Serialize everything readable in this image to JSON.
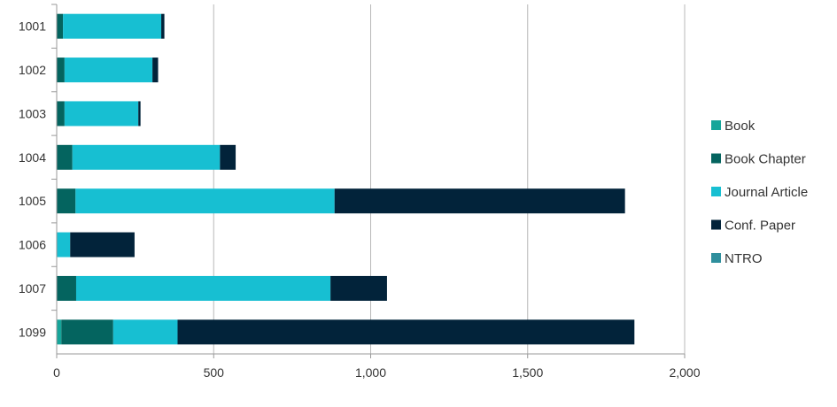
{
  "chart_data": {
    "type": "bar",
    "orientation": "horizontal",
    "stacked": true,
    "title": "",
    "xlabel": "",
    "ylabel": "",
    "categories": [
      "1001",
      "1002",
      "1003",
      "1004",
      "1005",
      "1006",
      "1007",
      "1099"
    ],
    "series": [
      {
        "name": "Book",
        "color": "#16a59a",
        "values": [
          0,
          0,
          0,
          0,
          0,
          0,
          0,
          15
        ]
      },
      {
        "name": "Book Chapter",
        "color": "#04645f",
        "values": [
          20,
          25,
          25,
          50,
          60,
          0,
          62,
          165
        ]
      },
      {
        "name": "Journal Article",
        "color": "#17bfd2",
        "values": [
          313,
          280,
          235,
          470,
          825,
          43,
          810,
          205
        ]
      },
      {
        "name": "Conf. Paper",
        "color": "#02233a",
        "values": [
          10,
          18,
          7,
          50,
          925,
          205,
          180,
          1455
        ]
      },
      {
        "name": "NTRO",
        "color": "#2f8f9d",
        "values": [
          0,
          0,
          0,
          0,
          0,
          0,
          0,
          0
        ]
      }
    ],
    "xlim": [
      0,
      2000
    ],
    "xticks": [
      0,
      500,
      1000,
      1500,
      2000
    ],
    "xtick_labels": [
      "0",
      "500",
      "1,000",
      "1,500",
      "2,000"
    ],
    "grid": "vertical",
    "legend_position": "right"
  }
}
